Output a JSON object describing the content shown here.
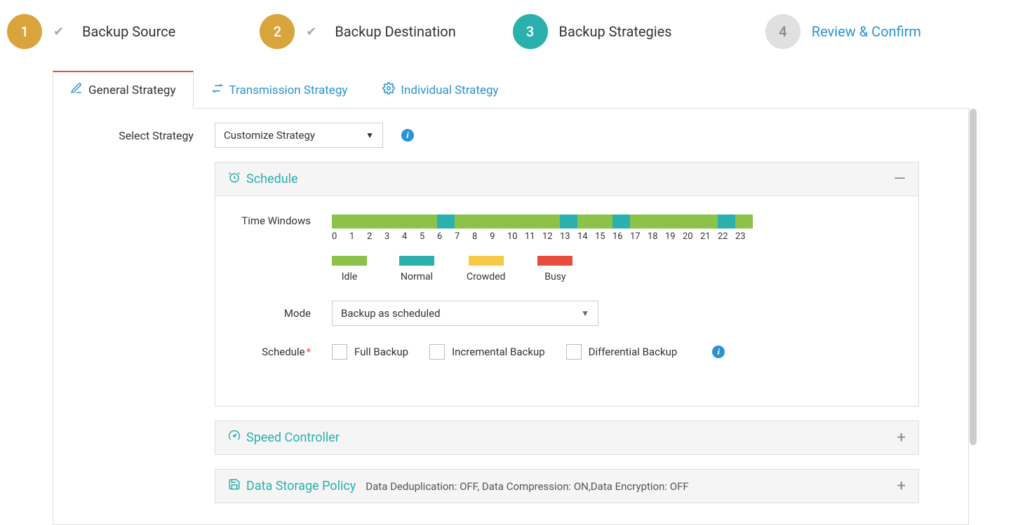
{
  "wizard": {
    "steps": [
      {
        "num": "1",
        "label": "Backup Source",
        "state": "done",
        "checked": true
      },
      {
        "num": "2",
        "label": "Backup Destination",
        "state": "done",
        "checked": true
      },
      {
        "num": "3",
        "label": "Backup Strategies",
        "state": "active",
        "checked": false
      },
      {
        "num": "4",
        "label": "Review & Confirm",
        "state": "pending",
        "checked": false
      }
    ]
  },
  "tabs": {
    "general": "General Strategy",
    "transmission": "Transmission Strategy",
    "individual": "Individual Strategy"
  },
  "form": {
    "select_strategy_label": "Select Strategy",
    "select_strategy_value": "Customize Strategy"
  },
  "schedule": {
    "title": "Schedule",
    "time_windows_label": "Time Windows",
    "hours": [
      "0",
      "1",
      "2",
      "3",
      "4",
      "5",
      "6",
      "7",
      "8",
      "9",
      "10",
      "11",
      "12",
      "13",
      "14",
      "15",
      "16",
      "17",
      "18",
      "19",
      "20",
      "21",
      "22",
      "23"
    ],
    "hour_states": [
      "idle",
      "idle",
      "idle",
      "idle",
      "idle",
      "idle",
      "normal",
      "idle",
      "idle",
      "idle",
      "idle",
      "idle",
      "idle",
      "normal",
      "idle",
      "idle",
      "normal",
      "idle",
      "idle",
      "idle",
      "idle",
      "idle",
      "normal",
      "idle"
    ],
    "legend": {
      "idle": {
        "label": "Idle",
        "color": "#8BC34A"
      },
      "normal": {
        "label": "Normal",
        "color": "#2bb0ad"
      },
      "crowded": {
        "label": "Crowded",
        "color": "#f7c948"
      },
      "busy": {
        "label": "Busy",
        "color": "#e74c3c"
      }
    },
    "mode_label": "Mode",
    "mode_value": "Backup as scheduled",
    "schedule_label": "Schedule",
    "checkboxes": {
      "full": "Full Backup",
      "incremental": "Incremental Backup",
      "differential": "Differential Backup"
    }
  },
  "speed_controller": {
    "title": "Speed Controller"
  },
  "data_storage": {
    "title": "Data Storage Policy",
    "subtitle": "Data Deduplication: OFF, Data Compression: ON,Data Encryption: OFF"
  },
  "colors": {
    "accent_teal": "#2bb0ad",
    "accent_blue": "#2b93d0",
    "step_done": "#d9a43c",
    "step_pending_bg": "#e0e0e0",
    "tab_active_top": "#e74c3c",
    "idle": "#8BC34A",
    "normal": "#2bb0ad",
    "crowded": "#f7c948",
    "busy": "#e74c3c"
  }
}
